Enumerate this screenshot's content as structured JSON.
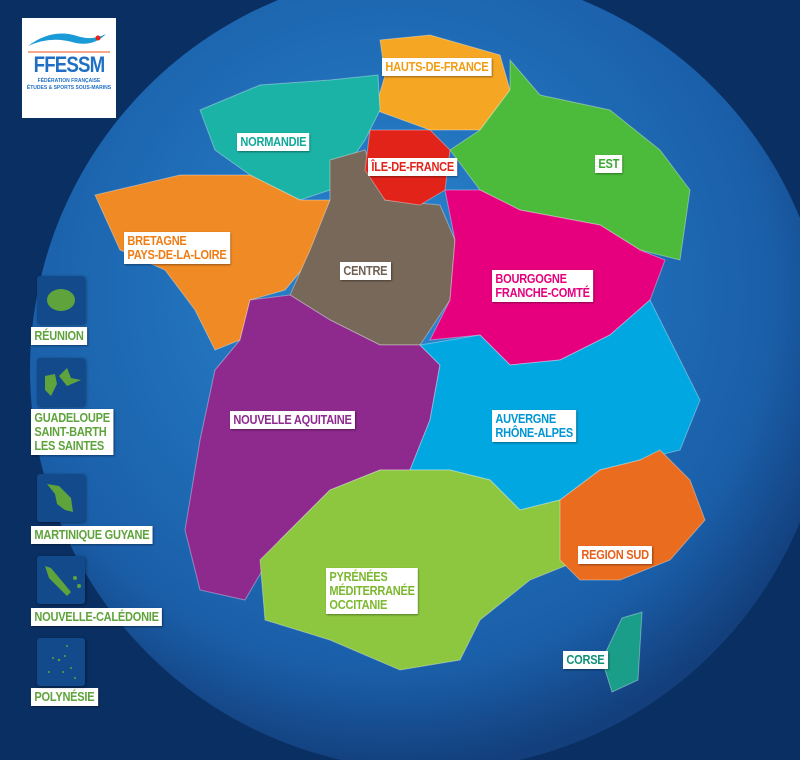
{
  "logo": {
    "name": "FFESSM",
    "line1": "FÉDÉRATION FRANÇAISE",
    "line2": "ÉTUDES & SPORTS SOUS-MARINS"
  },
  "colors": {
    "background": "#0a2f63",
    "globe": "#1b6cb8",
    "label_bg": "#ffffff",
    "overseas": "#5ea33c"
  },
  "regions": [
    {
      "id": "hauts-de-france",
      "label": "HAUTS-DE-FRANCE",
      "color": "#f5a623",
      "text": "#f39c12"
    },
    {
      "id": "normandie",
      "label": "NORMANDIE",
      "color": "#1ab3a6",
      "text": "#11a89a"
    },
    {
      "id": "ile-de-france",
      "label": "ÎLE-DE-FRANCE",
      "color": "#e2231a",
      "text": "#e2231a"
    },
    {
      "id": "est",
      "label": "EST",
      "color": "#4cbb3c",
      "text": "#3aa830"
    },
    {
      "id": "bretagne",
      "label": "BRETAGNE\nPAYS-DE-LA-LOIRE",
      "color": "#f08a24",
      "text": "#ef7d14"
    },
    {
      "id": "centre",
      "label": "CENTRE",
      "color": "#77685a",
      "text": "#6e5f52"
    },
    {
      "id": "bourgogne",
      "label": "BOURGOGNE\nFRANCHE-COMTÉ",
      "color": "#e6007e",
      "text": "#e6007e"
    },
    {
      "id": "nouvelle-aquitaine",
      "label": "NOUVELLE AQUITAINE",
      "color": "#8e2a8e",
      "text": "#8e2a8e"
    },
    {
      "id": "auvergne",
      "label": "AUVERGNE\nRHÔNE-ALPES",
      "color": "#00a7e1",
      "text": "#0096d6"
    },
    {
      "id": "region-sud",
      "label": "REGION SUD",
      "color": "#ea6c1f",
      "text": "#e8601a"
    },
    {
      "id": "occitanie",
      "label": "PYRÉNÉES\nMÉDITERRANÉE\nOCCITANIE",
      "color": "#8dc63f",
      "text": "#7cb82f"
    },
    {
      "id": "corse",
      "label": "CORSE",
      "color": "#1a9e8a",
      "text": "#128f7b"
    }
  ],
  "overseas": [
    {
      "id": "reunion",
      "label": "RÉUNION"
    },
    {
      "id": "guadeloupe",
      "label": "GUADELOUPE\nSAINT-BARTH\nLES SAINTES"
    },
    {
      "id": "martinique",
      "label": "MARTINIQUE GUYANE"
    },
    {
      "id": "nouvelle-caledonie",
      "label": "NOUVELLE-CALÉDONIE"
    },
    {
      "id": "polynesie",
      "label": "POLYNÉSIE"
    }
  ]
}
